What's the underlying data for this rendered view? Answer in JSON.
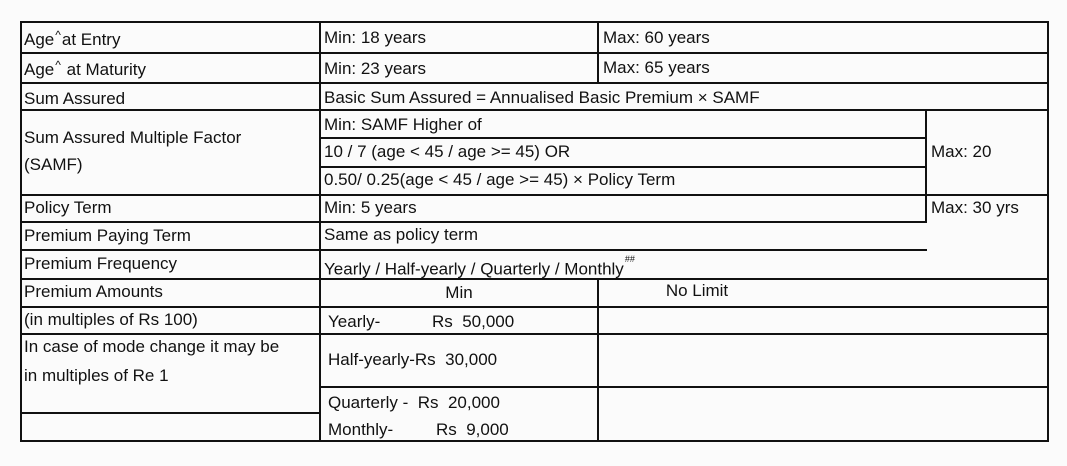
{
  "rows": {
    "age_entry": {
      "label_a": "Age",
      "label_b": "at Entry",
      "min": "Min: 18 years",
      "max": "Max: 60 years"
    },
    "age_maturity": {
      "label_a": "Age",
      "label_b": " at Maturity",
      "min": "Min: 23 years",
      "max": "Max: 65 years"
    },
    "sum_assured": {
      "label": "Sum Assured",
      "value": "Basic Sum Assured = Annualised Basic Premium × SAMF"
    },
    "samf": {
      "label_line1": "Sum Assured Multiple Factor",
      "label_line2": "(SAMF)",
      "min_head": "Min: SAMF Higher of",
      "option1": "10 / 7 (age < 45 / age >= 45)  OR",
      "option2": "0.50/ 0.25(age < 45 / age >= 45)  × Policy Term",
      "max": "Max: 20"
    },
    "policy_term": {
      "label": "Policy Term",
      "min": "Min: 5 years",
      "max": "Max: 30 yrs"
    },
    "ppt": {
      "label": "Premium Paying Term",
      "value": "Same as policy term"
    },
    "frequency": {
      "label": "Premium Frequency",
      "value": "Yearly / Half-yearly / Quarterly / Monthly",
      "sup": "##"
    },
    "amounts": {
      "label_line1": "Premium Amounts",
      "label_line2": "(in multiples of Rs 100)",
      "label_line3": "In case of mode change it may be",
      "label_line4": "in multiples of Re 1",
      "min_head": "Min",
      "max_head": "No Limit",
      "yearly_mode": "Yearly-",
      "yearly_amt": "Rs  50,000",
      "half_yearly": "Half-yearly-Rs  30,000",
      "quarterly": "Quarterly -  Rs  20,000",
      "monthly_mode": "Monthly-",
      "monthly_amt": "Rs  9,000"
    }
  }
}
